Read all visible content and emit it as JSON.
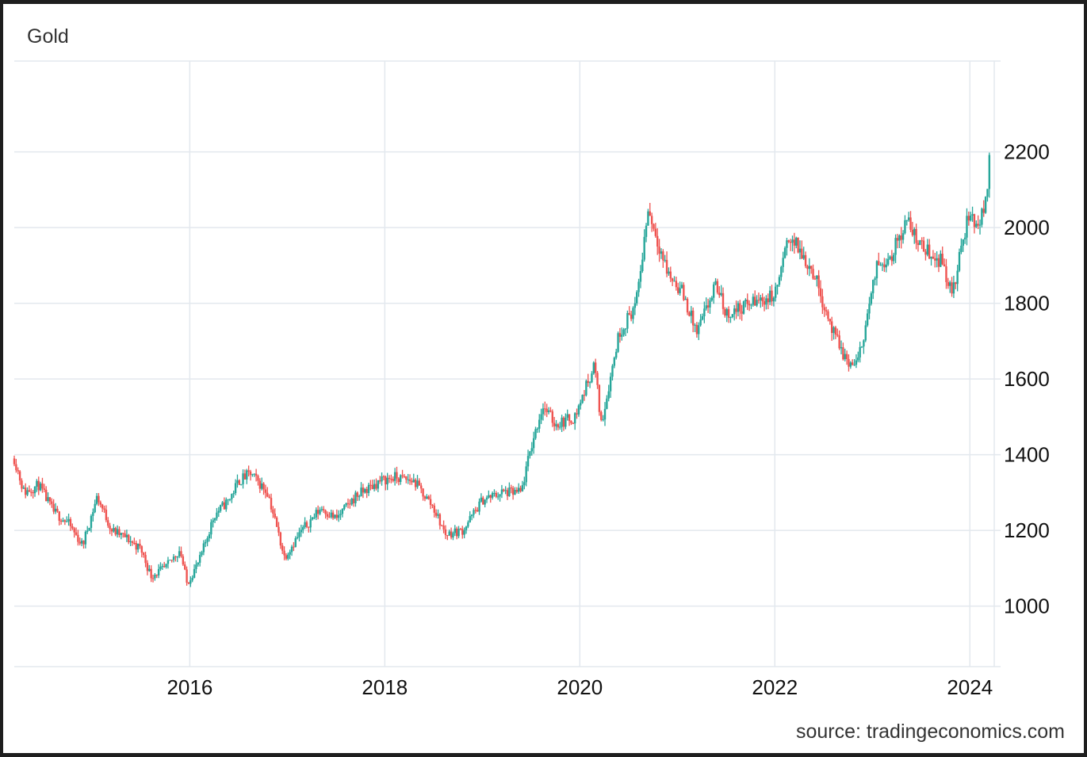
{
  "chart_data": {
    "type": "candlestick",
    "title": "Gold",
    "source": "source: tradingeconomics.com",
    "xlim": [
      2014.2,
      2024.25
    ],
    "ylim": [
      840,
      2440
    ],
    "x_ticks": [
      2016,
      2018,
      2020,
      2022,
      2024
    ],
    "x_tick_labels": [
      "2016",
      "2018",
      "2020",
      "2022",
      "2024"
    ],
    "y_ticks": [
      1000,
      1200,
      1400,
      1600,
      1800,
      2000,
      2200
    ],
    "y_tick_labels": [
      "1000",
      "1200",
      "1400",
      "1600",
      "1800",
      "2000",
      "2200"
    ],
    "grid": true,
    "colors": {
      "up": "#26a69a",
      "down": "#ef5350",
      "grid": "#e3e8ee",
      "axis_text": "#111111"
    },
    "series": [
      {
        "name": "Gold",
        "x": [
          2014.2,
          2014.3,
          2014.45,
          2014.6,
          2014.75,
          2014.9,
          2015.05,
          2015.2,
          2015.35,
          2015.5,
          2015.6,
          2015.75,
          2015.9,
          2015.97,
          2016.1,
          2016.25,
          2016.4,
          2016.5,
          2016.62,
          2016.8,
          2016.97,
          2017.15,
          2017.35,
          2017.5,
          2017.7,
          2017.95,
          2018.1,
          2018.3,
          2018.5,
          2018.62,
          2018.8,
          2019.0,
          2019.2,
          2019.4,
          2019.5,
          2019.62,
          2019.75,
          2019.95,
          2020.15,
          2020.22,
          2020.4,
          2020.58,
          2020.7,
          2020.9,
          2021.05,
          2021.2,
          2021.4,
          2021.5,
          2021.75,
          2022.0,
          2022.15,
          2022.4,
          2022.6,
          2022.75,
          2022.85,
          2023.05,
          2023.2,
          2023.35,
          2023.5,
          2023.72,
          2023.82,
          2023.98,
          2024.1,
          2024.17,
          2024.2
        ],
        "close": [
          1390,
          1300,
          1320,
          1250,
          1220,
          1160,
          1290,
          1200,
          1180,
          1150,
          1080,
          1100,
          1150,
          1060,
          1120,
          1240,
          1280,
          1330,
          1350,
          1300,
          1130,
          1200,
          1260,
          1230,
          1290,
          1330,
          1340,
          1330,
          1260,
          1190,
          1200,
          1280,
          1300,
          1300,
          1420,
          1530,
          1480,
          1500,
          1640,
          1480,
          1720,
          1800,
          2050,
          1880,
          1830,
          1720,
          1850,
          1770,
          1800,
          1820,
          1980,
          1880,
          1720,
          1640,
          1640,
          1900,
          1930,
          2020,
          1950,
          1910,
          1820,
          2030,
          2010,
          2080,
          2190
        ]
      }
    ]
  }
}
